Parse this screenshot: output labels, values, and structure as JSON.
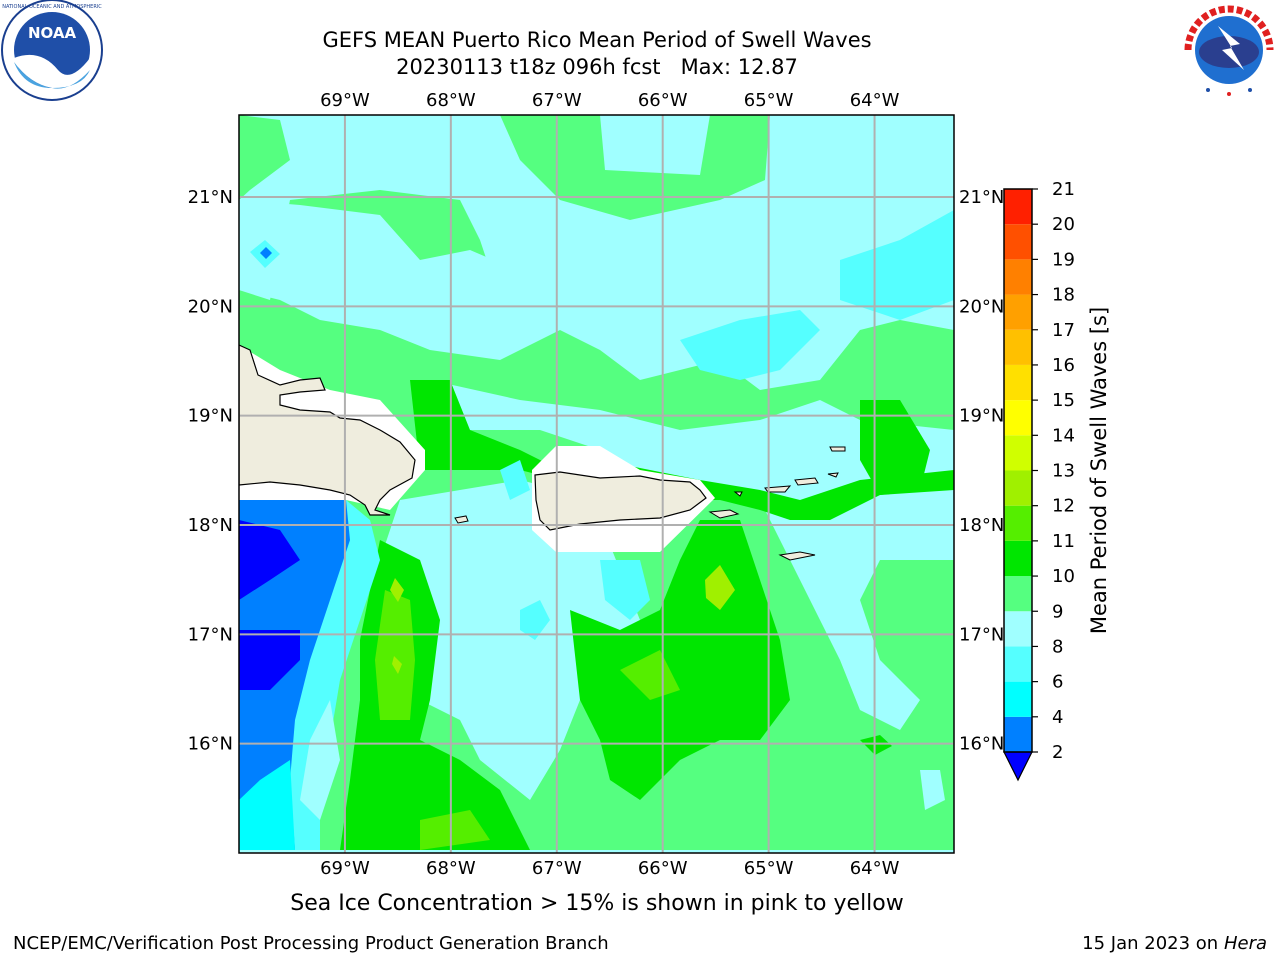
{
  "header": {
    "title_line1": "GEFS MEAN Puerto Rico Mean Period of Swell Waves",
    "title_line2": "20230113 t18z 096h fcst   Max: 12.87"
  },
  "logos": {
    "left": {
      "name": "NOAA",
      "text": "NOAA"
    },
    "right": {
      "name": "National Weather Service"
    }
  },
  "map": {
    "lon_labels": [
      "69°W",
      "68°W",
      "67°W",
      "66°W",
      "65°W",
      "64°W"
    ],
    "lat_labels": [
      "21°N",
      "20°N",
      "19°N",
      "18°N",
      "17°N",
      "16°N"
    ],
    "lon_range": [
      -70.0,
      -63.25
    ],
    "lat_range": [
      15.0,
      21.75
    ]
  },
  "colorbar": {
    "label": "Mean Period of Swell Waves [s]",
    "ticks": [
      "2",
      "4",
      "6",
      "8",
      "9",
      "10",
      "11",
      "12",
      "13",
      "14",
      "15",
      "16",
      "17",
      "18",
      "19",
      "20",
      "21"
    ],
    "colors": [
      "#0000ff",
      "#0080ff",
      "#00ffff",
      "#55ffff",
      "#a0ffff",
      "#55ff80",
      "#00e600",
      "#55ee00",
      "#a0f000",
      "#d0ff00",
      "#ffff00",
      "#ffe000",
      "#ffc000",
      "#ffa000",
      "#ff8000",
      "#ff5000",
      "#ff2000",
      "#ff0000"
    ]
  },
  "sea_ice_note": "Sea Ice Concentration > 15% is shown in pink to yellow",
  "footer": {
    "left": "NCEP/EMC/Verification Post Processing Product Generation Branch",
    "date": "15 Jan 2023 on ",
    "host": "Hera"
  }
}
